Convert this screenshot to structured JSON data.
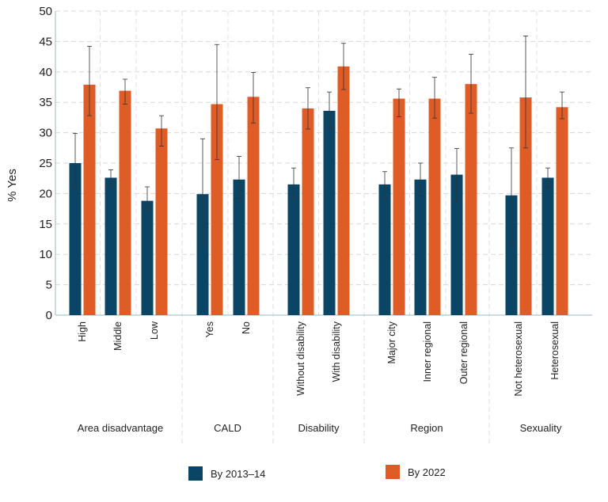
{
  "chart_data": {
    "type": "bar",
    "ylabel": "% Yes",
    "ylim": [
      0,
      50
    ],
    "yticks": [
      0,
      5,
      10,
      15,
      20,
      25,
      30,
      35,
      40,
      45,
      50
    ],
    "grid": true,
    "legend_position": "bottom",
    "groups": [
      {
        "label": "Area disadvantage",
        "categories": [
          "High",
          "Middle",
          "Low"
        ]
      },
      {
        "label": "CALD",
        "categories": [
          "Yes",
          "No"
        ]
      },
      {
        "label": "Disability",
        "categories": [
          "Without disability",
          "With disability"
        ]
      },
      {
        "label": "Region",
        "categories": [
          "Major city",
          "Inner regional",
          "Outer regional"
        ]
      },
      {
        "label": "Sexuality",
        "categories": [
          "Not heterosexual",
          "Heterosexual"
        ]
      }
    ],
    "series": [
      {
        "name": "By 2013–14",
        "color": "#0b4566",
        "values": [
          25.0,
          22.6,
          18.8,
          19.9,
          22.3,
          21.5,
          33.6,
          21.5,
          22.3,
          23.1,
          19.7,
          22.6
        ],
        "error_low": [
          21.0,
          21.2,
          17.4,
          11.6,
          19.2,
          19.3,
          30.8,
          19.3,
          19.6,
          18.6,
          11.7,
          21.0
        ],
        "error_high": [
          29.9,
          23.9,
          21.1,
          29.0,
          26.1,
          24.2,
          36.7,
          23.6,
          25.0,
          27.4,
          27.5,
          24.2
        ]
      },
      {
        "name": "By 2022",
        "color": "#e05c27",
        "values": [
          37.9,
          36.9,
          30.7,
          34.7,
          35.9,
          34.0,
          40.9,
          35.6,
          35.6,
          38.0,
          35.8,
          34.2
        ],
        "error_low": [
          32.8,
          34.7,
          27.8,
          25.6,
          31.6,
          30.6,
          37.1,
          32.6,
          32.4,
          33.2,
          27.5,
          32.3
        ],
        "error_high": [
          44.2,
          38.8,
          32.8,
          44.5,
          39.9,
          37.4,
          44.7,
          37.2,
          39.1,
          42.9,
          45.9,
          36.7
        ]
      }
    ]
  }
}
